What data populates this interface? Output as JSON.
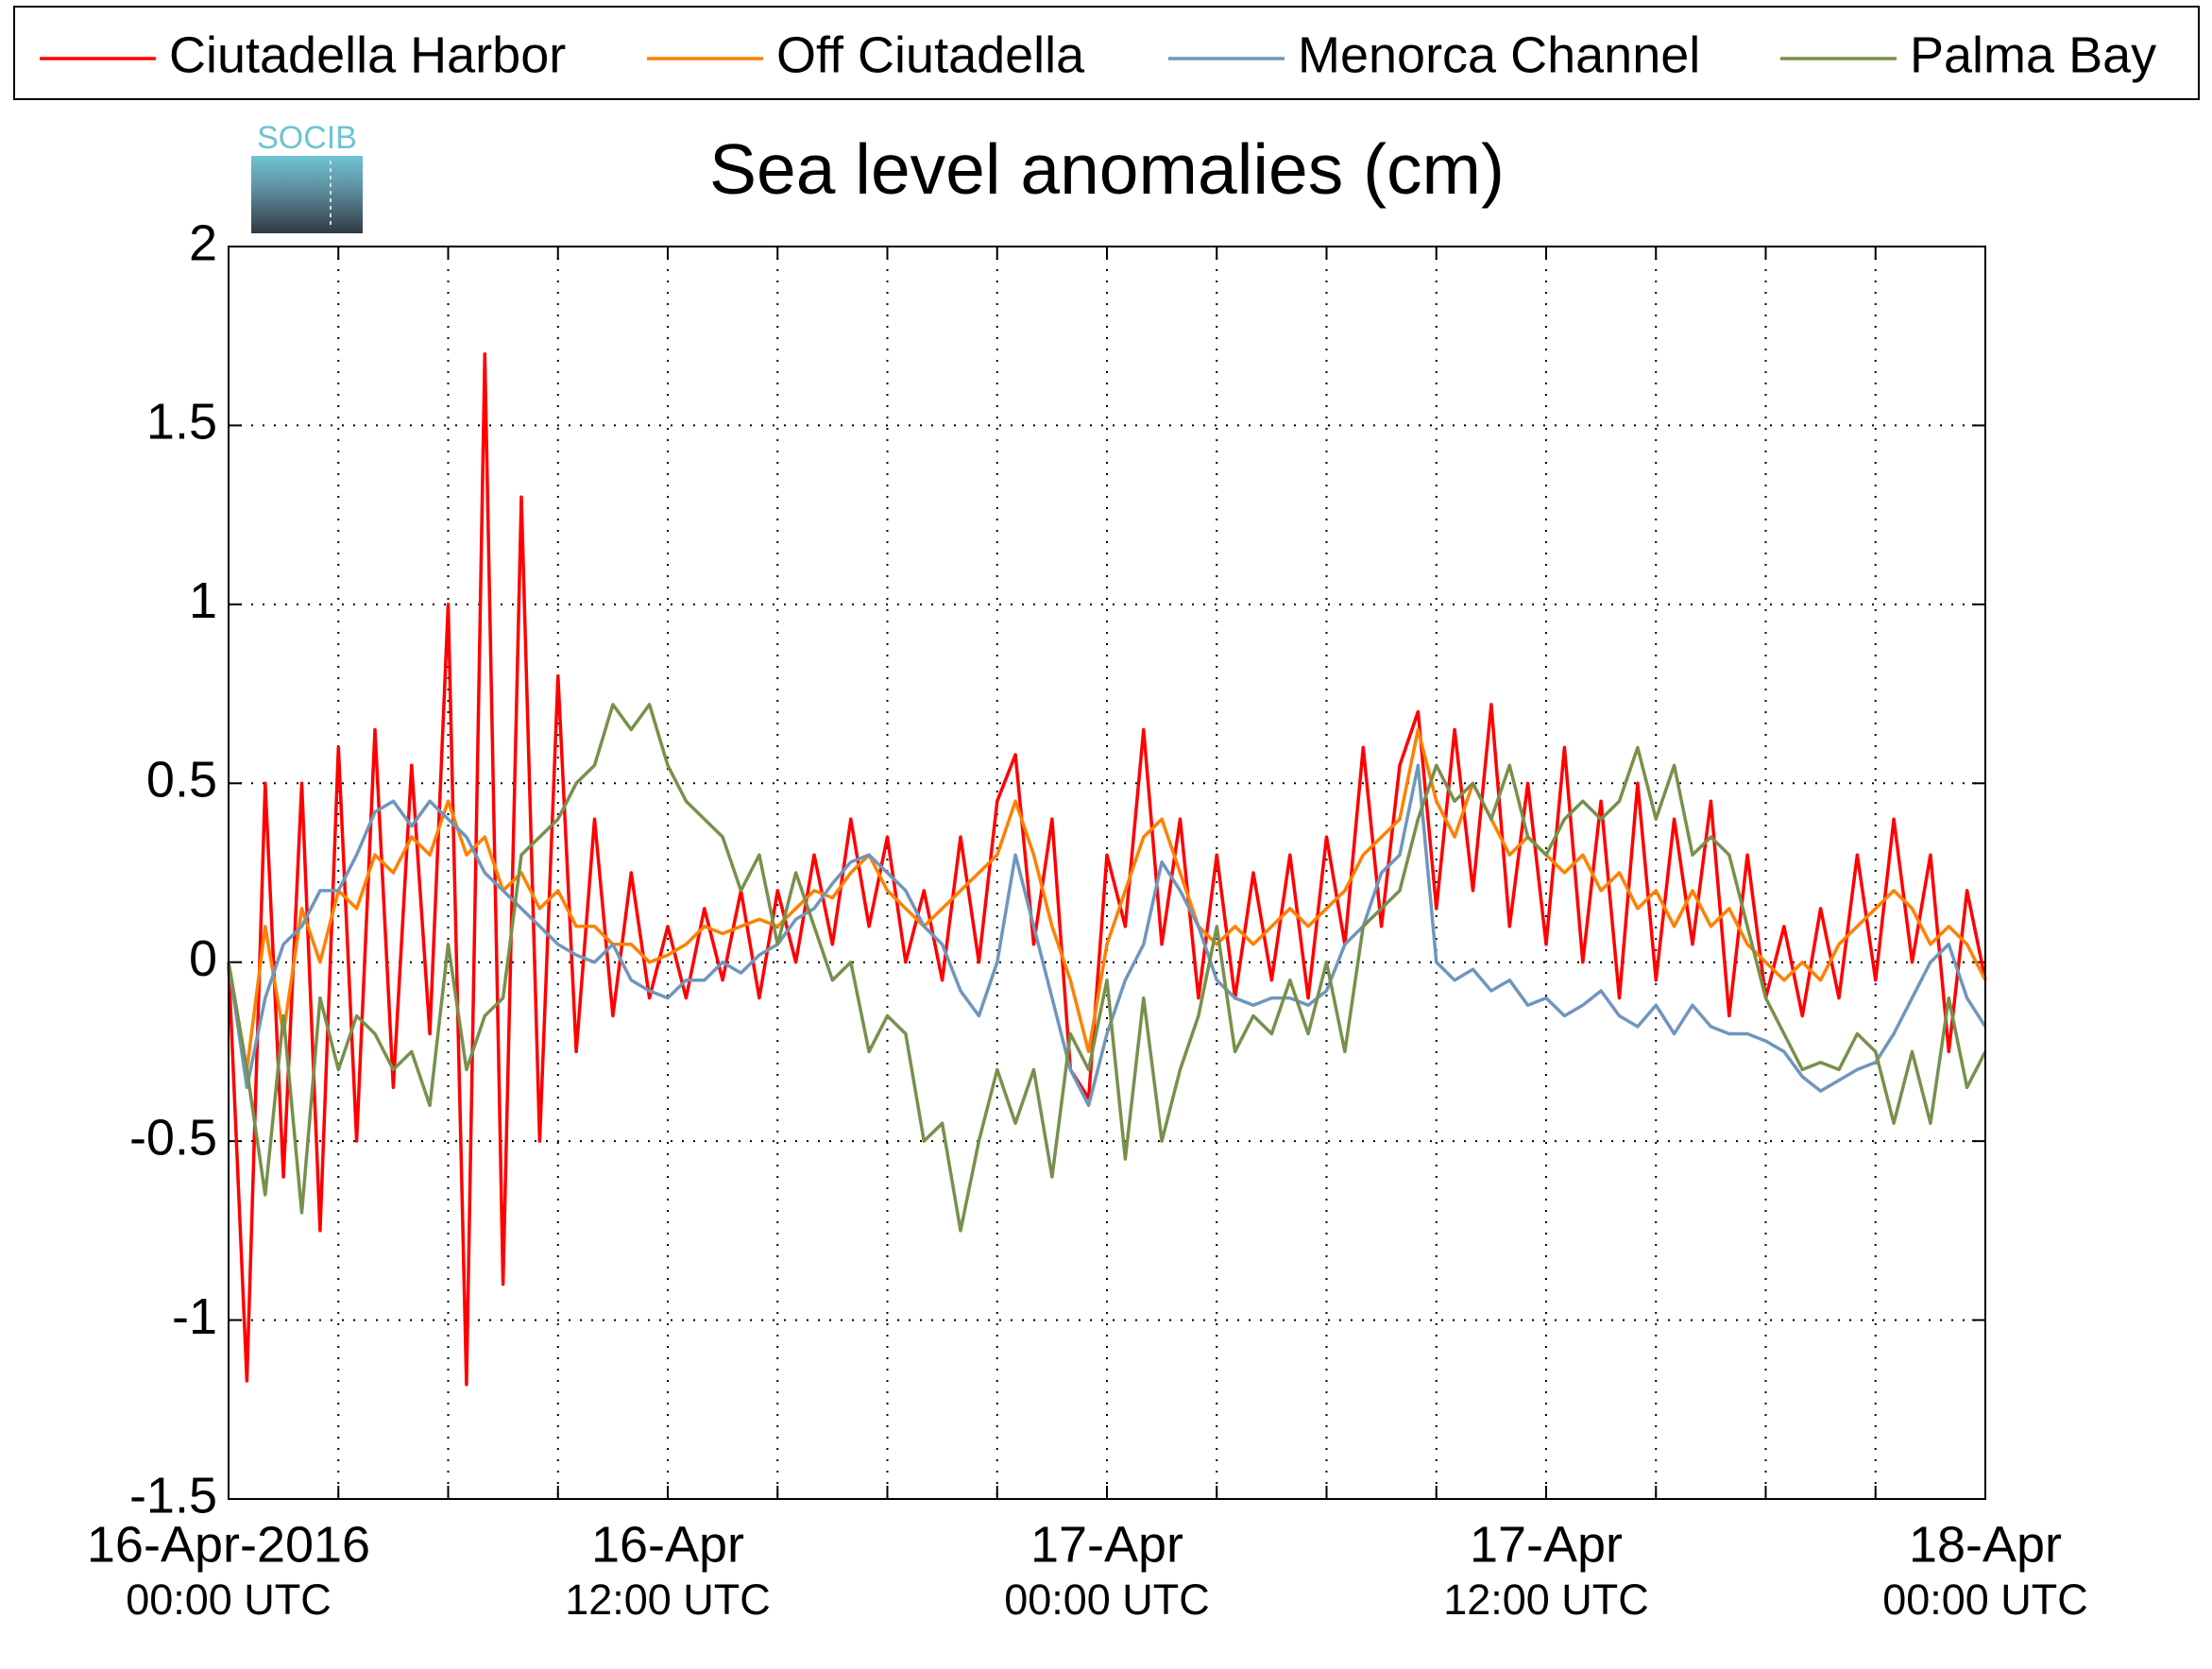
{
  "logo": "SOCIB",
  "chart_data": {
    "type": "line",
    "title": "Sea level anomalies (cm)",
    "x": [
      "2016-04-16 00:00",
      "2016-04-16 00:30",
      "2016-04-16 01:00",
      "2016-04-16 01:30",
      "2016-04-16 02:00",
      "2016-04-16 02:30",
      "2016-04-16 03:00",
      "2016-04-16 03:30",
      "2016-04-16 04:00",
      "2016-04-16 04:30",
      "2016-04-16 05:00",
      "2016-04-16 05:30",
      "2016-04-16 06:00",
      "2016-04-16 06:30",
      "2016-04-16 07:00",
      "2016-04-16 07:30",
      "2016-04-16 08:00",
      "2016-04-16 08:30",
      "2016-04-16 09:00",
      "2016-04-16 09:30",
      "2016-04-16 10:00",
      "2016-04-16 10:30",
      "2016-04-16 11:00",
      "2016-04-16 11:30",
      "2016-04-16 12:00",
      "2016-04-16 12:30",
      "2016-04-16 13:00",
      "2016-04-16 13:30",
      "2016-04-16 14:00",
      "2016-04-16 14:30",
      "2016-04-16 15:00",
      "2016-04-16 15:30",
      "2016-04-16 16:00",
      "2016-04-16 16:30",
      "2016-04-16 17:00",
      "2016-04-16 17:30",
      "2016-04-16 18:00",
      "2016-04-16 18:30",
      "2016-04-16 19:00",
      "2016-04-16 19:30",
      "2016-04-16 20:00",
      "2016-04-16 20:30",
      "2016-04-16 21:00",
      "2016-04-16 21:30",
      "2016-04-16 22:00",
      "2016-04-16 22:30",
      "2016-04-16 23:00",
      "2016-04-16 23:30",
      "2016-04-17 00:00",
      "2016-04-17 00:30",
      "2016-04-17 01:00",
      "2016-04-17 01:30",
      "2016-04-17 02:00",
      "2016-04-17 02:30",
      "2016-04-17 03:00",
      "2016-04-17 03:30",
      "2016-04-17 04:00",
      "2016-04-17 04:30",
      "2016-04-17 05:00",
      "2016-04-17 05:30",
      "2016-04-17 06:00",
      "2016-04-17 06:30",
      "2016-04-17 07:00",
      "2016-04-17 07:30",
      "2016-04-17 08:00",
      "2016-04-17 08:30",
      "2016-04-17 09:00",
      "2016-04-17 09:30",
      "2016-04-17 10:00",
      "2016-04-17 10:30",
      "2016-04-17 11:00",
      "2016-04-17 11:30",
      "2016-04-17 12:00",
      "2016-04-17 12:30",
      "2016-04-17 13:00",
      "2016-04-17 13:30",
      "2016-04-17 14:00",
      "2016-04-17 14:30",
      "2016-04-17 15:00",
      "2016-04-17 15:30",
      "2016-04-17 16:00",
      "2016-04-17 16:30",
      "2016-04-17 17:00",
      "2016-04-17 17:30",
      "2016-04-17 18:00",
      "2016-04-17 18:30",
      "2016-04-17 19:00",
      "2016-04-17 19:30",
      "2016-04-17 20:00",
      "2016-04-17 20:30",
      "2016-04-17 21:00",
      "2016-04-17 21:30",
      "2016-04-17 22:00",
      "2016-04-17 22:30",
      "2016-04-17 23:00",
      "2016-04-17 23:30",
      "2016-04-18 00:00"
    ],
    "series": [
      {
        "name": "Ciutadella Harbor",
        "color": "#ff0000",
        "values": [
          0.0,
          -1.17,
          0.5,
          -0.6,
          0.5,
          -0.75,
          0.6,
          -0.5,
          0.65,
          -0.35,
          0.55,
          -0.2,
          1.0,
          -1.18,
          1.7,
          -0.9,
          1.3,
          -0.5,
          0.8,
          -0.25,
          0.4,
          -0.15,
          0.25,
          -0.1,
          0.1,
          -0.1,
          0.15,
          -0.05,
          0.2,
          -0.1,
          0.2,
          0.0,
          0.3,
          0.05,
          0.4,
          0.1,
          0.35,
          0.0,
          0.2,
          -0.05,
          0.35,
          0.0,
          0.45,
          0.58,
          0.05,
          0.4,
          -0.3,
          -0.38,
          0.3,
          0.1,
          0.65,
          0.05,
          0.4,
          -0.1,
          0.3,
          -0.1,
          0.25,
          -0.05,
          0.3,
          -0.1,
          0.35,
          0.05,
          0.6,
          0.1,
          0.55,
          0.7,
          0.15,
          0.65,
          0.2,
          0.72,
          0.1,
          0.5,
          0.05,
          0.6,
          0.0,
          0.45,
          -0.1,
          0.5,
          -0.05,
          0.4,
          0.05,
          0.45,
          -0.15,
          0.3,
          -0.1,
          0.1,
          -0.15,
          0.15,
          -0.1,
          0.3,
          -0.05,
          0.4,
          0.0,
          0.3,
          -0.25,
          0.2,
          -0.05
        ]
      },
      {
        "name": "Off Ciutadella",
        "color": "#ff8000",
        "values": [
          0,
          -0.3,
          0.1,
          -0.2,
          0.15,
          0.0,
          0.2,
          0.15,
          0.3,
          0.25,
          0.35,
          0.3,
          0.45,
          0.3,
          0.35,
          0.2,
          0.25,
          0.15,
          0.2,
          0.1,
          0.1,
          0.05,
          0.05,
          0.0,
          0.02,
          0.05,
          0.1,
          0.08,
          0.1,
          0.12,
          0.1,
          0.15,
          0.2,
          0.18,
          0.25,
          0.3,
          0.2,
          0.15,
          0.1,
          0.15,
          0.2,
          0.25,
          0.3,
          0.45,
          0.3,
          0.1,
          -0.05,
          -0.25,
          0.05,
          0.2,
          0.35,
          0.4,
          0.25,
          0.1,
          0.05,
          0.1,
          0.05,
          0.1,
          0.15,
          0.1,
          0.15,
          0.2,
          0.3,
          0.35,
          0.4,
          0.65,
          0.45,
          0.35,
          0.5,
          0.4,
          0.3,
          0.35,
          0.3,
          0.25,
          0.3,
          0.2,
          0.25,
          0.15,
          0.2,
          0.1,
          0.2,
          0.1,
          0.15,
          0.05,
          0.0,
          -0.05,
          0.0,
          -0.05,
          0.05,
          0.1,
          0.15,
          0.2,
          0.15,
          0.05,
          0.1,
          0.05,
          -0.05
        ]
      },
      {
        "name": "Menorca Channel",
        "color": "#6f96bd",
        "values": [
          0,
          -0.35,
          -0.1,
          0.05,
          0.1,
          0.2,
          0.2,
          0.3,
          0.42,
          0.45,
          0.38,
          0.45,
          0.4,
          0.35,
          0.25,
          0.2,
          0.15,
          0.1,
          0.05,
          0.02,
          0.0,
          0.05,
          -0.05,
          -0.08,
          -0.1,
          -0.05,
          -0.05,
          0.0,
          -0.03,
          0.02,
          0.05,
          0.12,
          0.15,
          0.22,
          0.28,
          0.3,
          0.25,
          0.2,
          0.1,
          0.05,
          -0.08,
          -0.15,
          0.0,
          0.3,
          0.1,
          -0.1,
          -0.3,
          -0.4,
          -0.2,
          -0.05,
          0.05,
          0.28,
          0.2,
          0.1,
          -0.05,
          -0.1,
          -0.12,
          -0.1,
          -0.1,
          -0.12,
          -0.08,
          0.05,
          0.1,
          0.25,
          0.3,
          0.55,
          0.0,
          -0.05,
          -0.02,
          -0.08,
          -0.05,
          -0.12,
          -0.1,
          -0.15,
          -0.12,
          -0.08,
          -0.15,
          -0.18,
          -0.12,
          -0.2,
          -0.12,
          -0.18,
          -0.2,
          -0.2,
          -0.22,
          -0.25,
          -0.32,
          -0.36,
          -0.33,
          -0.3,
          -0.28,
          -0.2,
          -0.1,
          0.0,
          0.05,
          -0.1,
          -0.18
        ]
      },
      {
        "name": "Palma Bay",
        "color": "#77904c",
        "values": [
          0,
          -0.3,
          -0.65,
          -0.15,
          -0.7,
          -0.1,
          -0.3,
          -0.15,
          -0.2,
          -0.3,
          -0.25,
          -0.4,
          0.05,
          -0.3,
          -0.15,
          -0.1,
          0.3,
          0.35,
          0.4,
          0.5,
          0.55,
          0.72,
          0.65,
          0.72,
          0.55,
          0.45,
          0.4,
          0.35,
          0.2,
          0.3,
          0.05,
          0.25,
          0.1,
          -0.05,
          0.0,
          -0.25,
          -0.15,
          -0.2,
          -0.5,
          -0.45,
          -0.75,
          -0.5,
          -0.3,
          -0.45,
          -0.3,
          -0.6,
          -0.2,
          -0.3,
          -0.05,
          -0.55,
          -0.1,
          -0.5,
          -0.3,
          -0.15,
          0.1,
          -0.25,
          -0.15,
          -0.2,
          -0.05,
          -0.2,
          0.0,
          -0.25,
          0.1,
          0.15,
          0.2,
          0.4,
          0.55,
          0.45,
          0.5,
          0.4,
          0.55,
          0.35,
          0.3,
          0.4,
          0.45,
          0.4,
          0.45,
          0.6,
          0.4,
          0.55,
          0.3,
          0.35,
          0.3,
          0.1,
          -0.1,
          -0.2,
          -0.3,
          -0.28,
          -0.3,
          -0.2,
          -0.25,
          -0.45,
          -0.25,
          -0.45,
          -0.1,
          -0.35,
          -0.25
        ]
      }
    ],
    "xlim": [
      "2016-04-16 00:00",
      "2016-04-18 00:00"
    ],
    "xticks": [
      {
        "value": "2016-04-16 00:00",
        "label": [
          "16-Apr-2016",
          "00:00 UTC"
        ]
      },
      {
        "value": "2016-04-16 03:00",
        "label": null
      },
      {
        "value": "2016-04-16 06:00",
        "label": null
      },
      {
        "value": "2016-04-16 09:00",
        "label": null
      },
      {
        "value": "2016-04-16 12:00",
        "label": [
          "16-Apr",
          "12:00 UTC"
        ]
      },
      {
        "value": "2016-04-16 15:00",
        "label": null
      },
      {
        "value": "2016-04-16 18:00",
        "label": null
      },
      {
        "value": "2016-04-16 21:00",
        "label": null
      },
      {
        "value": "2016-04-17 00:00",
        "label": [
          "17-Apr",
          "00:00 UTC"
        ]
      },
      {
        "value": "2016-04-17 03:00",
        "label": null
      },
      {
        "value": "2016-04-17 06:00",
        "label": null
      },
      {
        "value": "2016-04-17 09:00",
        "label": null
      },
      {
        "value": "2016-04-17 12:00",
        "label": [
          "17-Apr",
          "12:00 UTC"
        ]
      },
      {
        "value": "2016-04-17 15:00",
        "label": null
      },
      {
        "value": "2016-04-17 18:00",
        "label": null
      },
      {
        "value": "2016-04-17 21:00",
        "label": null
      },
      {
        "value": "2016-04-18 00:00",
        "label": [
          "18-Apr",
          "00:00 UTC"
        ]
      }
    ],
    "ylim": [
      -1.5,
      2
    ],
    "yticks": [
      -1.5,
      -1,
      -0.5,
      0,
      0.5,
      1,
      1.5,
      2
    ],
    "grid": true,
    "legend": "top"
  }
}
